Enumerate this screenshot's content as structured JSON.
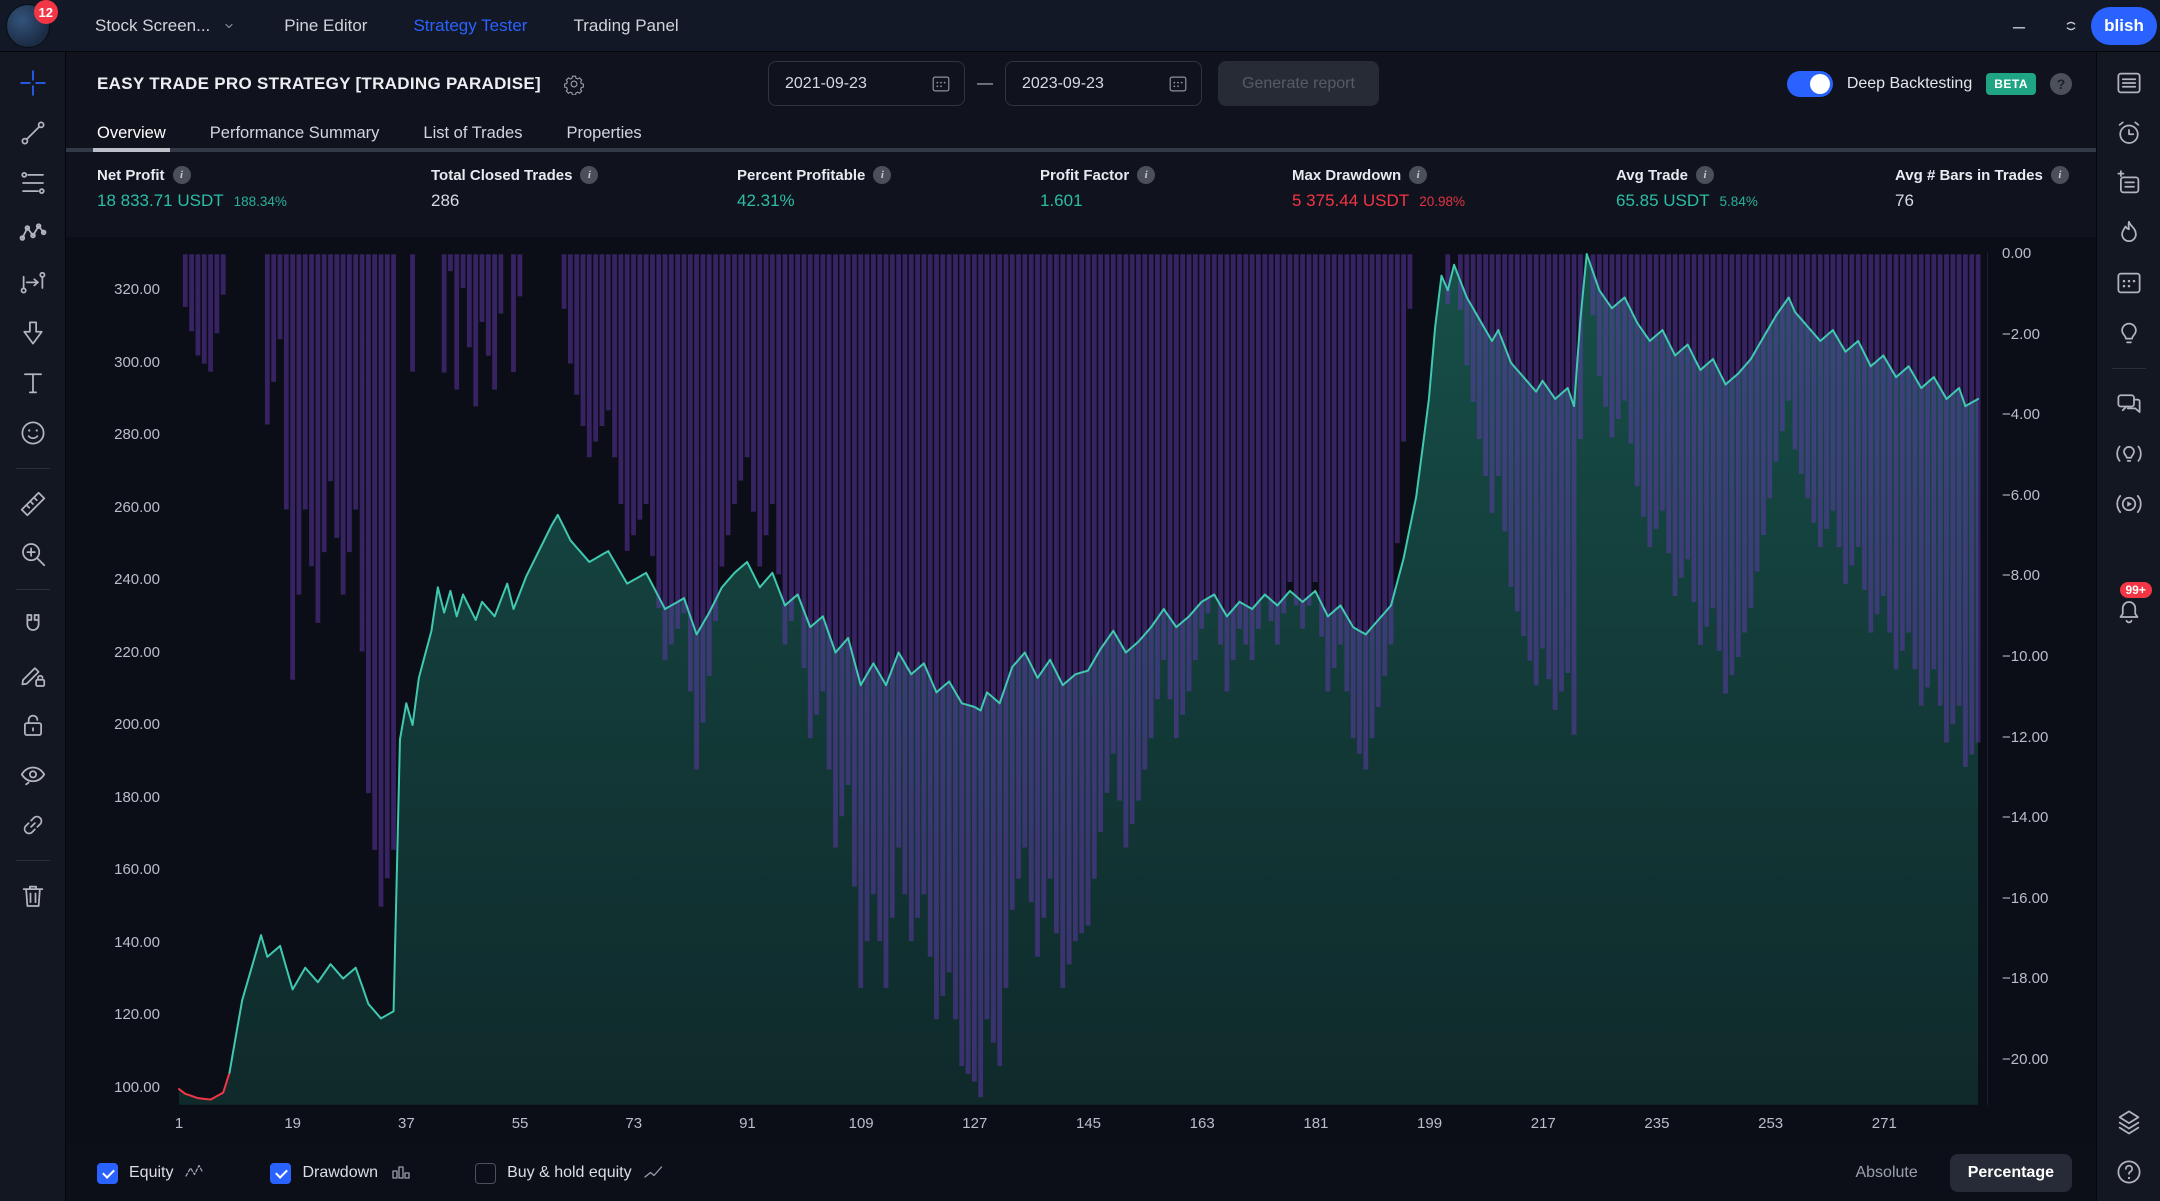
{
  "navbar": {
    "badge": "12",
    "items": [
      {
        "label": "Stock Screen...",
        "chevron": true,
        "active": false
      },
      {
        "label": "Pine Editor",
        "active": false
      },
      {
        "label": "Strategy Tester",
        "active": true
      },
      {
        "label": "Trading Panel",
        "active": false
      }
    ],
    "publish_label": "blish"
  },
  "header": {
    "title": "EASY TRADE PRO STRATEGY [TRADING PARADISE]",
    "date_from": "2021-09-23",
    "date_separator": "—",
    "date_to": "2023-09-23",
    "generate_button": "Generate report",
    "deep_backtesting": {
      "label": "Deep Backtesting",
      "badge": "BETA",
      "enabled": true
    }
  },
  "tabs": [
    {
      "label": "Overview",
      "active": true
    },
    {
      "label": "Performance Summary",
      "active": false
    },
    {
      "label": "List of Trades",
      "active": false
    },
    {
      "label": "Properties",
      "active": false
    }
  ],
  "stats": [
    {
      "label": "Net Profit",
      "value": "18 833.71 USDT",
      "sub": "188.34%",
      "color": "teal"
    },
    {
      "label": "Total Closed Trades",
      "value": "286",
      "color": "neutral"
    },
    {
      "label": "Percent Profitable",
      "value": "42.31%",
      "color": "teal"
    },
    {
      "label": "Profit Factor",
      "value": "1.601",
      "color": "teal"
    },
    {
      "label": "Max Drawdown",
      "value": "5 375.44 USDT",
      "sub": "20.98%",
      "color": "red"
    },
    {
      "label": "Avg Trade",
      "value": "65.85 USDT",
      "sub": "5.84%",
      "color": "teal"
    },
    {
      "label": "Avg # Bars in Trades",
      "value": "76",
      "color": "neutral"
    }
  ],
  "chart_data": {
    "type": "area+bar",
    "bars_total": 286,
    "x_ticks": [
      1,
      19,
      37,
      55,
      73,
      91,
      109,
      127,
      145,
      163,
      181,
      199,
      217,
      235,
      253,
      271
    ],
    "left_axis": {
      "title": "Equity (absolute)",
      "ticks": [
        "320.00",
        "300.00",
        "280.00",
        "260.00",
        "240.00",
        "220.00",
        "200.00",
        "180.00",
        "160.00",
        "140.00",
        "120.00",
        "100.00"
      ],
      "min": 95.2,
      "max": 330.5
    },
    "right_axis": {
      "title": "Drawdown %",
      "ticks": [
        "0.00",
        "−2.00",
        "−4.00",
        "−6.00",
        "−8.00",
        "−10.00",
        "−12.00",
        "−14.00",
        "−16.00",
        "−18.00",
        "−20.00"
      ],
      "min": -21.1,
      "max": 0
    },
    "series": [
      {
        "name": "Equity",
        "type": "area",
        "axis": "left",
        "color": "#40c9b0",
        "below_start_color": "#f23645",
        "start_value": 100,
        "anchors": [
          [
            1,
            99.5
          ],
          [
            2,
            98.2
          ],
          [
            4,
            97.0
          ],
          [
            6,
            96.6
          ],
          [
            8,
            98.5
          ],
          [
            9,
            104
          ],
          [
            11,
            124
          ],
          [
            14,
            142
          ],
          [
            15,
            136
          ],
          [
            17,
            139
          ],
          [
            19,
            127
          ],
          [
            21,
            133
          ],
          [
            23,
            129
          ],
          [
            25,
            134
          ],
          [
            27,
            130
          ],
          [
            29,
            133
          ],
          [
            31,
            123
          ],
          [
            33,
            119
          ],
          [
            35,
            121
          ],
          [
            36,
            196
          ],
          [
            37,
            206
          ],
          [
            38,
            200
          ],
          [
            39,
            213
          ],
          [
            41,
            226
          ],
          [
            42,
            238
          ],
          [
            43,
            231
          ],
          [
            44,
            237
          ],
          [
            45,
            230
          ],
          [
            46,
            236
          ],
          [
            48,
            229
          ],
          [
            49,
            234
          ],
          [
            51,
            230
          ],
          [
            53,
            239
          ],
          [
            54,
            232
          ],
          [
            56,
            241
          ],
          [
            58,
            248
          ],
          [
            60,
            255
          ],
          [
            61,
            258
          ],
          [
            63,
            251
          ],
          [
            66,
            245
          ],
          [
            69,
            248
          ],
          [
            72,
            239
          ],
          [
            75,
            242
          ],
          [
            78,
            232
          ],
          [
            81,
            235
          ],
          [
            83,
            225
          ],
          [
            85,
            231
          ],
          [
            87,
            238
          ],
          [
            89,
            242
          ],
          [
            91,
            245
          ],
          [
            93,
            238
          ],
          [
            95,
            242
          ],
          [
            97,
            233
          ],
          [
            99,
            236
          ],
          [
            101,
            227
          ],
          [
            103,
            230
          ],
          [
            105,
            220
          ],
          [
            107,
            224
          ],
          [
            109,
            211
          ],
          [
            111,
            217
          ],
          [
            113,
            211
          ],
          [
            115,
            220
          ],
          [
            117,
            214
          ],
          [
            119,
            217
          ],
          [
            121,
            209
          ],
          [
            123,
            212
          ],
          [
            125,
            206
          ],
          [
            127,
            205
          ],
          [
            128,
            204
          ],
          [
            129,
            209
          ],
          [
            131,
            206
          ],
          [
            133,
            216
          ],
          [
            135,
            220
          ],
          [
            137,
            213
          ],
          [
            139,
            218
          ],
          [
            141,
            211
          ],
          [
            143,
            214
          ],
          [
            145,
            215
          ],
          [
            147,
            221
          ],
          [
            149,
            226
          ],
          [
            151,
            220
          ],
          [
            153,
            223
          ],
          [
            155,
            227
          ],
          [
            157,
            232
          ],
          [
            159,
            227
          ],
          [
            161,
            230
          ],
          [
            163,
            234
          ],
          [
            165,
            236
          ],
          [
            167,
            230
          ],
          [
            169,
            234
          ],
          [
            171,
            232
          ],
          [
            173,
            236
          ],
          [
            175,
            233
          ],
          [
            177,
            237
          ],
          [
            179,
            234
          ],
          [
            181,
            237
          ],
          [
            183,
            230
          ],
          [
            185,
            233
          ],
          [
            187,
            227
          ],
          [
            189,
            225
          ],
          [
            191,
            229
          ],
          [
            193,
            233
          ],
          [
            195,
            246
          ],
          [
            197,
            263
          ],
          [
            199,
            290
          ],
          [
            200,
            310
          ],
          [
            201,
            324
          ],
          [
            202,
            320
          ],
          [
            203,
            327
          ],
          [
            205,
            318
          ],
          [
            207,
            312
          ],
          [
            209,
            306
          ],
          [
            210,
            309
          ],
          [
            212,
            300
          ],
          [
            214,
            296
          ],
          [
            216,
            292
          ],
          [
            217,
            295
          ],
          [
            219,
            290
          ],
          [
            221,
            293
          ],
          [
            222,
            288
          ],
          [
            223,
            312
          ],
          [
            224,
            330
          ],
          [
            225,
            325
          ],
          [
            226,
            320
          ],
          [
            228,
            315
          ],
          [
            230,
            318
          ],
          [
            232,
            311
          ],
          [
            234,
            306
          ],
          [
            236,
            309
          ],
          [
            238,
            302
          ],
          [
            240,
            305
          ],
          [
            242,
            298
          ],
          [
            244,
            301
          ],
          [
            246,
            294
          ],
          [
            248,
            297
          ],
          [
            250,
            301
          ],
          [
            252,
            307
          ],
          [
            254,
            313
          ],
          [
            256,
            318
          ],
          [
            257,
            314
          ],
          [
            259,
            310
          ],
          [
            261,
            306
          ],
          [
            263,
            309
          ],
          [
            265,
            303
          ],
          [
            267,
            306
          ],
          [
            269,
            299
          ],
          [
            271,
            302
          ],
          [
            273,
            296
          ],
          [
            275,
            299
          ],
          [
            277,
            293
          ],
          [
            279,
            296
          ],
          [
            281,
            290
          ],
          [
            283,
            293
          ],
          [
            284,
            288
          ],
          [
            286,
            290
          ]
        ]
      },
      {
        "name": "Drawdown",
        "type": "bar",
        "axis": "right",
        "color": "#6a3ab8",
        "derivation": "percent_below_running_max_of_equity"
      }
    ]
  },
  "legend": {
    "items": [
      {
        "label": "Equity",
        "checked": true,
        "icon": "equity-line"
      },
      {
        "label": "Drawdown",
        "checked": true,
        "icon": "drawdown-bars"
      },
      {
        "label": "Buy & hold equity",
        "checked": false,
        "icon": "buyhold-line"
      }
    ],
    "mode_options": [
      {
        "label": "Absolute",
        "active": false
      },
      {
        "label": "Percentage",
        "active": true
      }
    ]
  },
  "toolbars": {
    "left": [
      {
        "icon": "crosshair",
        "active": true
      },
      {
        "icon": "trend-line"
      },
      {
        "icon": "fib-retracement"
      },
      {
        "icon": "pattern"
      },
      {
        "icon": "projection"
      },
      {
        "icon": "arrow-marker"
      },
      {
        "icon": "text"
      },
      {
        "icon": "emoji"
      },
      {
        "divider": true
      },
      {
        "icon": "ruler"
      },
      {
        "icon": "zoom-in"
      },
      {
        "divider": true
      },
      {
        "icon": "magnet"
      },
      {
        "icon": "pencil-lock"
      },
      {
        "icon": "lock"
      },
      {
        "icon": "eye"
      },
      {
        "icon": "link"
      },
      {
        "divider": true
      },
      {
        "icon": "trash"
      }
    ],
    "right": [
      {
        "icon": "watchlist"
      },
      {
        "icon": "alerts"
      },
      {
        "icon": "notes"
      },
      {
        "icon": "hotlists"
      },
      {
        "icon": "calendar"
      },
      {
        "icon": "ideas"
      },
      {
        "divider": true
      },
      {
        "icon": "chat"
      },
      {
        "icon": "live-ideas"
      },
      {
        "icon": "streams"
      },
      {
        "icon": "bell",
        "badge": "99+",
        "gap": 58
      },
      {
        "icon": "object-tree",
        "bottom": true
      },
      {
        "icon": "help"
      }
    ]
  },
  "colors": {
    "accent_blue": "#2962ff",
    "teal_value": "#2cbda6",
    "red_value": "#f23645",
    "equity_line": "#40c9b0",
    "equity_fill": "rgba(41,170,143,0.42)",
    "drawdown_bar": "#6a3ab8",
    "beta_badge": "#1fa583",
    "chart_bg": "#0b0e16"
  }
}
